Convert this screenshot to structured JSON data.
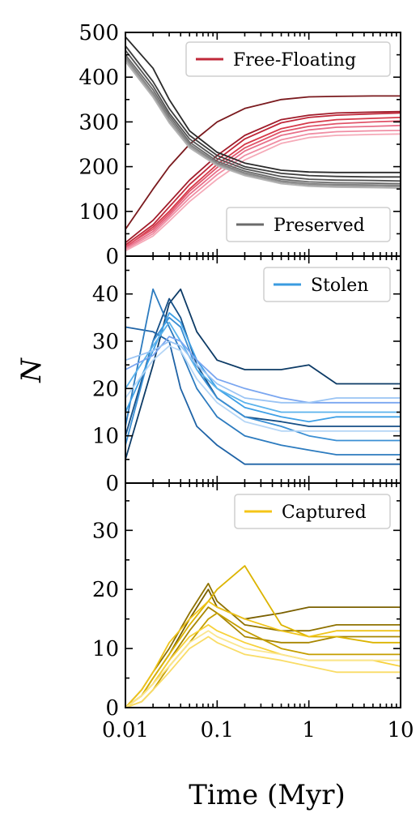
{
  "figure": {
    "xlabel": "Time (Myr)",
    "ylabel": "N"
  },
  "chart_data": [
    {
      "type": "line",
      "xscale": "log",
      "xlim": [
        0.01,
        10
      ],
      "ylim": [
        0,
        500
      ],
      "y_ticks": [
        0,
        100,
        200,
        300,
        400,
        500
      ],
      "x_ticks": [
        "0.01",
        "0.1",
        "1",
        "10"
      ],
      "legends": [
        {
          "label": "Free-Floating",
          "color": "#c0283a",
          "placement": "top-right"
        },
        {
          "label": "Preserved",
          "color": "#6b6b6b",
          "placement": "bottom-right"
        }
      ],
      "series": [
        {
          "group": "Free-Floating",
          "color": "#7a1a1e",
          "x": [
            0.01,
            0.02,
            0.03,
            0.05,
            0.1,
            0.2,
            0.5,
            1,
            2,
            5,
            10
          ],
          "values": [
            60,
            150,
            200,
            250,
            300,
            330,
            350,
            356,
            357,
            358,
            358
          ]
        },
        {
          "group": "Free-Floating",
          "color": "#a01c2a",
          "x": [
            0.01,
            0.02,
            0.03,
            0.05,
            0.1,
            0.2,
            0.5,
            1,
            2,
            5,
            10
          ],
          "values": [
            30,
            80,
            120,
            170,
            225,
            270,
            305,
            315,
            320,
            322,
            323
          ]
        },
        {
          "group": "Free-Floating",
          "color": "#c0283a",
          "x": [
            0.01,
            0.02,
            0.03,
            0.05,
            0.1,
            0.2,
            0.5,
            1,
            2,
            5,
            10
          ],
          "values": [
            25,
            70,
            110,
            160,
            215,
            262,
            298,
            310,
            315,
            318,
            320
          ]
        },
        {
          "group": "Free-Floating",
          "color": "#d63a4a",
          "x": [
            0.01,
            0.02,
            0.03,
            0.05,
            0.1,
            0.2,
            0.5,
            1,
            2,
            5,
            10
          ],
          "values": [
            20,
            65,
            100,
            150,
            205,
            250,
            285,
            298,
            305,
            308,
            310
          ]
        },
        {
          "group": "Free-Floating",
          "color": "#e0556a",
          "x": [
            0.01,
            0.02,
            0.03,
            0.05,
            0.1,
            0.2,
            0.5,
            1,
            2,
            5,
            10
          ],
          "values": [
            22,
            60,
            95,
            145,
            198,
            242,
            278,
            290,
            296,
            300,
            302
          ]
        },
        {
          "group": "Free-Floating",
          "color": "#e8708a",
          "x": [
            0.01,
            0.02,
            0.03,
            0.05,
            0.1,
            0.2,
            0.5,
            1,
            2,
            5,
            10
          ],
          "values": [
            18,
            55,
            90,
            138,
            190,
            235,
            270,
            282,
            288,
            290,
            292
          ]
        },
        {
          "group": "Free-Floating",
          "color": "#f08ea4",
          "x": [
            0.01,
            0.02,
            0.03,
            0.05,
            0.1,
            0.2,
            0.5,
            1,
            2,
            5,
            10
          ],
          "values": [
            15,
            50,
            85,
            130,
            182,
            225,
            260,
            273,
            278,
            280,
            281
          ]
        },
        {
          "group": "Free-Floating",
          "color": "#f5aab8",
          "x": [
            0.01,
            0.02,
            0.03,
            0.05,
            0.1,
            0.2,
            0.5,
            1,
            2,
            5,
            10
          ],
          "values": [
            12,
            45,
            78,
            122,
            172,
            215,
            252,
            265,
            270,
            272,
            273
          ]
        },
        {
          "group": "Preserved",
          "color": "#2a2a2a",
          "x": [
            0.01,
            0.02,
            0.03,
            0.05,
            0.1,
            0.2,
            0.5,
            1,
            2,
            5,
            10
          ],
          "values": [
            490,
            420,
            350,
            280,
            232,
            208,
            192,
            188,
            187,
            187,
            187
          ]
        },
        {
          "group": "Preserved",
          "color": "#3d3d3d",
          "x": [
            0.01,
            0.02,
            0.03,
            0.05,
            0.1,
            0.2,
            0.5,
            1,
            2,
            5,
            10
          ],
          "values": [
            470,
            390,
            330,
            270,
            225,
            200,
            185,
            180,
            178,
            177,
            177
          ]
        },
        {
          "group": "Preserved",
          "color": "#555555",
          "x": [
            0.01,
            0.02,
            0.03,
            0.05,
            0.1,
            0.2,
            0.5,
            1,
            2,
            5,
            10
          ],
          "values": [
            460,
            380,
            320,
            262,
            218,
            195,
            178,
            172,
            170,
            169,
            168
          ]
        },
        {
          "group": "Preserved",
          "color": "#6b6b6b",
          "x": [
            0.01,
            0.02,
            0.03,
            0.05,
            0.1,
            0.2,
            0.5,
            1,
            2,
            5,
            10
          ],
          "values": [
            450,
            372,
            314,
            255,
            212,
            190,
            172,
            166,
            164,
            163,
            162
          ]
        },
        {
          "group": "Preserved",
          "color": "#808080",
          "x": [
            0.01,
            0.02,
            0.03,
            0.05,
            0.1,
            0.2,
            0.5,
            1,
            2,
            5,
            10
          ],
          "values": [
            445,
            365,
            308,
            250,
            208,
            186,
            168,
            162,
            160,
            159,
            158
          ]
        },
        {
          "group": "Preserved",
          "color": "#999999",
          "x": [
            0.01,
            0.02,
            0.03,
            0.05,
            0.1,
            0.2,
            0.5,
            1,
            2,
            5,
            10
          ],
          "values": [
            440,
            360,
            302,
            246,
            205,
            183,
            165,
            159,
            157,
            156,
            155
          ]
        },
        {
          "group": "Preserved",
          "color": "#b3b3b3",
          "x": [
            0.01,
            0.02,
            0.03,
            0.05,
            0.1,
            0.2,
            0.5,
            1,
            2,
            5,
            10
          ],
          "values": [
            435,
            355,
            298,
            242,
            202,
            180,
            162,
            156,
            154,
            153,
            152
          ]
        }
      ]
    },
    {
      "type": "line",
      "xscale": "log",
      "xlim": [
        0.01,
        10
      ],
      "ylim": [
        0,
        48
      ],
      "y_ticks": [
        0,
        10,
        20,
        30,
        40
      ],
      "x_ticks": [
        "0.01",
        "0.1",
        "1",
        "10"
      ],
      "legends": [
        {
          "label": "Stolen",
          "color": "#3a9be0",
          "placement": "top-right"
        }
      ],
      "series": [
        {
          "group": "Stolen",
          "color": "#0d3b66",
          "x": [
            0.01,
            0.02,
            0.03,
            0.04,
            0.06,
            0.1,
            0.2,
            0.5,
            1,
            2,
            5,
            10
          ],
          "values": [
            5,
            25,
            38,
            41,
            32,
            26,
            24,
            24,
            25,
            21,
            21,
            21
          ]
        },
        {
          "group": "Stolen",
          "color": "#164f86",
          "x": [
            0.01,
            0.02,
            0.03,
            0.04,
            0.06,
            0.1,
            0.2,
            0.5,
            1,
            2,
            5,
            10
          ],
          "values": [
            10,
            30,
            39,
            35,
            25,
            18,
            14,
            13,
            12,
            12,
            12,
            12
          ]
        },
        {
          "group": "Stolen",
          "color": "#1f63a6",
          "x": [
            0.01,
            0.02,
            0.03,
            0.04,
            0.06,
            0.1,
            0.2,
            0.5,
            1,
            2,
            5,
            10
          ],
          "values": [
            33,
            32,
            30,
            20,
            12,
            8,
            4,
            4,
            4,
            4,
            4,
            4
          ]
        },
        {
          "group": "Stolen",
          "color": "#2c7bbf",
          "x": [
            0.01,
            0.02,
            0.03,
            0.04,
            0.06,
            0.1,
            0.2,
            0.5,
            1,
            2,
            5,
            10
          ],
          "values": [
            12,
            41,
            33,
            28,
            20,
            14,
            10,
            8,
            7,
            6,
            6,
            6
          ]
        },
        {
          "group": "Stolen",
          "color": "#3a8fd4",
          "x": [
            0.01,
            0.02,
            0.03,
            0.04,
            0.06,
            0.1,
            0.2,
            0.5,
            1,
            2,
            5,
            10
          ],
          "values": [
            8,
            30,
            35,
            33,
            24,
            18,
            14,
            12,
            10,
            9,
            9,
            9
          ]
        },
        {
          "group": "Stolen",
          "color": "#3fa0e6",
          "x": [
            0.01,
            0.02,
            0.03,
            0.04,
            0.06,
            0.1,
            0.2,
            0.5,
            1,
            2,
            5,
            10
          ],
          "values": [
            15,
            28,
            36,
            34,
            26,
            20,
            16,
            14,
            13,
            14,
            14,
            14
          ]
        },
        {
          "group": "Stolen",
          "color": "#5bb3ec",
          "x": [
            0.01,
            0.02,
            0.03,
            0.04,
            0.06,
            0.1,
            0.2,
            0.5,
            1,
            2,
            5,
            10
          ],
          "values": [
            20,
            29,
            34,
            30,
            24,
            20,
            17,
            15,
            15,
            15,
            15,
            15
          ]
        },
        {
          "group": "Stolen",
          "color": "#7aa6f0",
          "x": [
            0.01,
            0.02,
            0.03,
            0.04,
            0.06,
            0.1,
            0.2,
            0.5,
            1,
            2,
            5,
            10
          ],
          "values": [
            24,
            27,
            31,
            30,
            26,
            22,
            20,
            18,
            17,
            17,
            17,
            17
          ]
        },
        {
          "group": "Stolen",
          "color": "#9ac4f4",
          "x": [
            0.01,
            0.02,
            0.03,
            0.04,
            0.06,
            0.1,
            0.2,
            0.5,
            1,
            2,
            5,
            10
          ],
          "values": [
            26,
            28,
            30,
            29,
            25,
            21,
            18,
            17,
            17,
            18,
            18,
            18
          ]
        },
        {
          "group": "Stolen",
          "color": "#b5d6f6",
          "x": [
            0.01,
            0.02,
            0.03,
            0.04,
            0.06,
            0.1,
            0.2,
            0.5,
            1,
            2,
            5,
            10
          ],
          "values": [
            18,
            26,
            29,
            28,
            22,
            17,
            13,
            11,
            11,
            11,
            11,
            11
          ]
        }
      ]
    },
    {
      "type": "line",
      "xscale": "log",
      "xlim": [
        0.01,
        10
      ],
      "ylim": [
        0,
        38
      ],
      "y_ticks": [
        0,
        10,
        20,
        30
      ],
      "x_ticks": [
        "0.01",
        "0.1",
        "1",
        "10"
      ],
      "legends": [
        {
          "label": "Captured",
          "color": "#f5c518",
          "placement": "top-right"
        }
      ],
      "series": [
        {
          "group": "Captured",
          "color": "#7a6000",
          "x": [
            0.01,
            0.015,
            0.02,
            0.03,
            0.05,
            0.08,
            0.1,
            0.2,
            0.5,
            1,
            2,
            5,
            10
          ],
          "values": [
            0,
            2,
            5,
            9,
            15,
            20,
            17,
            15,
            16,
            17,
            17,
            17,
            17
          ]
        },
        {
          "group": "Captured",
          "color": "#8f7200",
          "x": [
            0.01,
            0.015,
            0.02,
            0.03,
            0.05,
            0.08,
            0.1,
            0.2,
            0.5,
            1,
            2,
            5,
            10
          ],
          "values": [
            0,
            3,
            6,
            10,
            16,
            21,
            18,
            14,
            13,
            13,
            14,
            14,
            14
          ]
        },
        {
          "group": "Captured",
          "color": "#a88600",
          "x": [
            0.01,
            0.015,
            0.02,
            0.03,
            0.05,
            0.08,
            0.1,
            0.2,
            0.5,
            1,
            2,
            5,
            10
          ],
          "values": [
            0,
            2,
            4,
            8,
            13,
            17,
            16,
            12,
            11,
            11,
            12,
            12,
            12
          ]
        },
        {
          "group": "Captured",
          "color": "#c49e00",
          "x": [
            0.01,
            0.015,
            0.02,
            0.03,
            0.05,
            0.08,
            0.1,
            0.2,
            0.5,
            1,
            2,
            5,
            10
          ],
          "values": [
            0,
            1,
            3,
            7,
            11,
            15,
            16,
            13,
            10,
            9,
            9,
            9,
            9
          ]
        },
        {
          "group": "Captured",
          "color": "#dcb400",
          "x": [
            0.01,
            0.015,
            0.02,
            0.03,
            0.05,
            0.08,
            0.1,
            0.2,
            0.5,
            1,
            2,
            5,
            10
          ],
          "values": [
            0,
            2,
            5,
            9,
            14,
            18,
            20,
            24,
            14,
            12,
            12,
            11,
            11
          ]
        },
        {
          "group": "Captured",
          "color": "#f0c419",
          "x": [
            0.01,
            0.015,
            0.02,
            0.03,
            0.05,
            0.08,
            0.1,
            0.2,
            0.5,
            1,
            2,
            5,
            10
          ],
          "values": [
            0,
            3,
            6,
            11,
            15,
            18,
            17,
            15,
            13,
            12,
            13,
            13,
            13
          ]
        },
        {
          "group": "Captured",
          "color": "#f7d13a",
          "x": [
            0.01,
            0.015,
            0.02,
            0.03,
            0.05,
            0.08,
            0.1,
            0.2,
            0.5,
            1,
            2,
            5,
            10
          ],
          "values": [
            0,
            2,
            4,
            8,
            12,
            14,
            13,
            11,
            9,
            8,
            8,
            8,
            7
          ]
        },
        {
          "group": "Captured",
          "color": "#f9dc66",
          "x": [
            0.01,
            0.015,
            0.02,
            0.03,
            0.05,
            0.08,
            0.1,
            0.2,
            0.5,
            1,
            2,
            5,
            10
          ],
          "values": [
            0,
            1,
            3,
            6,
            10,
            12,
            11,
            9,
            8,
            7,
            6,
            6,
            6
          ]
        },
        {
          "group": "Captured",
          "color": "#fbe68e",
          "x": [
            0.01,
            0.015,
            0.02,
            0.03,
            0.05,
            0.08,
            0.1,
            0.2,
            0.5,
            1,
            2,
            5,
            10
          ],
          "values": [
            0,
            2,
            4,
            7,
            11,
            13,
            12,
            10,
            9,
            8,
            8,
            8,
            8
          ]
        }
      ]
    }
  ]
}
